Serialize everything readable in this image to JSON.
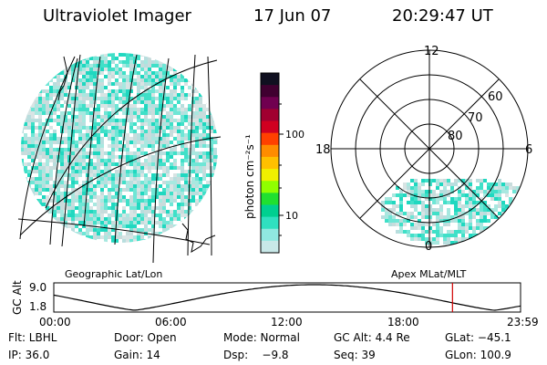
{
  "header": {
    "instrument": "Ultraviolet Imager",
    "date": "17 Jun 07",
    "time": "20:29:47 UT"
  },
  "colorbar": {
    "ylabel": "photon cm⁻²s⁻¹",
    "ticks": [
      "100",
      "10"
    ],
    "colors": [
      "#101020",
      "#400030",
      "#700050",
      "#a00030",
      "#d00020",
      "#ff4000",
      "#ff8c00",
      "#ffc000",
      "#f0f000",
      "#90ff00",
      "#20e030",
      "#00d090",
      "#30e0c0",
      "#90e8e0",
      "#c8e8e8"
    ]
  },
  "polar_plot": {
    "mlt_labels": [
      "12",
      "18",
      "6",
      "0"
    ],
    "mlat_labels": [
      "60",
      "70",
      "80"
    ]
  },
  "map_labels": {
    "left": "Geographic Lat/Lon",
    "right": "Apex MLat/MLT"
  },
  "altitude_plot": {
    "ylabel": "GC Alt",
    "yticks": [
      "9.0",
      "1.8"
    ],
    "xticks": [
      "00:00",
      "06:00",
      "12:00",
      "18:00",
      "23:59"
    ],
    "current_time_hours": 20.5,
    "marker_color": "#d00000"
  },
  "footer": {
    "filter": "Flt: LBHL",
    "door": "Door: Open",
    "mode": "Mode: Normal",
    "gc_alt": "GC Alt: 4.4 Re",
    "glat": "GLat: −45.1",
    "ip": "IP: 36.0",
    "gain": "Gain: 14",
    "dsp": "Dsp:    −9.8",
    "seq": "Seq: 39",
    "glon": "GLon: 100.9"
  }
}
